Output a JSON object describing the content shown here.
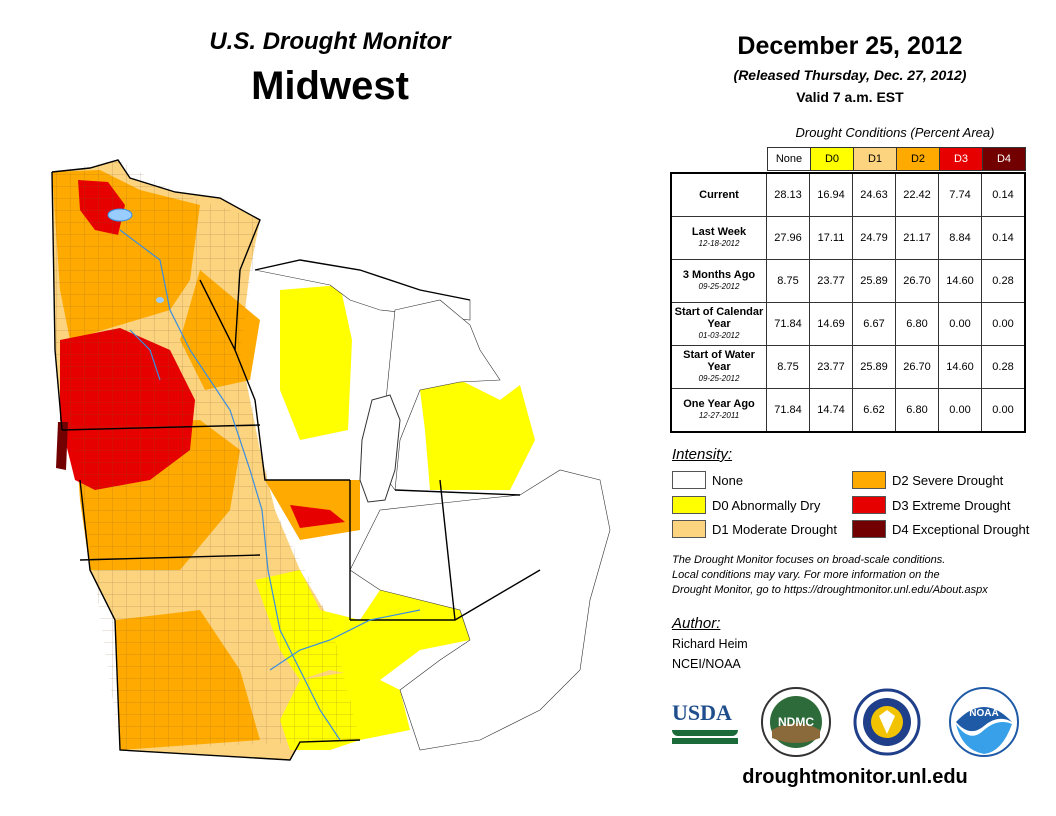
{
  "header": {
    "title": "U.S. Drought Monitor",
    "region": "Midwest",
    "date": "December 25, 2012",
    "released": "(Released Thursday, Dec. 27, 2012)",
    "valid": "Valid 7 a.m. EST"
  },
  "table": {
    "caption": "Drought Conditions (Percent Area)",
    "categories": [
      {
        "label": "None",
        "color": "#ffffff",
        "text_color": "#000000"
      },
      {
        "label": "D0",
        "color": "#ffff00",
        "text_color": "#000000"
      },
      {
        "label": "D1",
        "color": "#fcd37f",
        "text_color": "#000000"
      },
      {
        "label": "D2",
        "color": "#ffaa00",
        "text_color": "#000000"
      },
      {
        "label": "D3",
        "color": "#e60000",
        "text_color": "#ffffff"
      },
      {
        "label": "D4",
        "color": "#730000",
        "text_color": "#ffffff"
      }
    ],
    "rows": [
      {
        "label": "Current",
        "date": "",
        "values": [
          "28.13",
          "16.94",
          "24.63",
          "22.42",
          "7.74",
          "0.14"
        ]
      },
      {
        "label": "Last Week",
        "date": "12-18-2012",
        "values": [
          "27.96",
          "17.11",
          "24.79",
          "21.17",
          "8.84",
          "0.14"
        ]
      },
      {
        "label": "3 Months Ago",
        "date": "09-25-2012",
        "values": [
          "8.75",
          "23.77",
          "25.89",
          "26.70",
          "14.60",
          "0.28"
        ]
      },
      {
        "label": "Start of Calendar Year",
        "date": "01-03-2012",
        "values": [
          "71.84",
          "14.69",
          "6.67",
          "6.80",
          "0.00",
          "0.00"
        ]
      },
      {
        "label": "Start of Water Year",
        "date": "09-25-2012",
        "values": [
          "8.75",
          "23.77",
          "25.89",
          "26.70",
          "14.60",
          "0.28"
        ]
      },
      {
        "label": "One Year Ago",
        "date": "12-27-2011",
        "values": [
          "71.84",
          "14.74",
          "6.62",
          "6.80",
          "0.00",
          "0.00"
        ]
      }
    ]
  },
  "legend": {
    "title": "Intensity:",
    "items": [
      {
        "label": "None",
        "color": "#ffffff"
      },
      {
        "label": "D0 Abnormally Dry",
        "color": "#ffff00"
      },
      {
        "label": "D1 Moderate Drought",
        "color": "#fcd37f"
      },
      {
        "label": "D2 Severe Drought",
        "color": "#ffaa00"
      },
      {
        "label": "D3 Extreme Drought",
        "color": "#e60000"
      },
      {
        "label": "D4 Exceptional Drought",
        "color": "#730000"
      }
    ]
  },
  "note": {
    "line1": "The Drought Monitor focuses on broad-scale conditions.",
    "line2": "Local conditions may vary. For more information on the",
    "line3": "Drought Monitor, go to https://droughtmonitor.unl.edu/About.aspx"
  },
  "author": {
    "title": "Author:",
    "name": "Richard Heim",
    "org": "NCEI/NOAA"
  },
  "logos": {
    "usda": "USDA",
    "ndmc": "NDMC",
    "noaa": "NOAA"
  },
  "footer": {
    "site": "droughtmonitor.unl.edu"
  }
}
